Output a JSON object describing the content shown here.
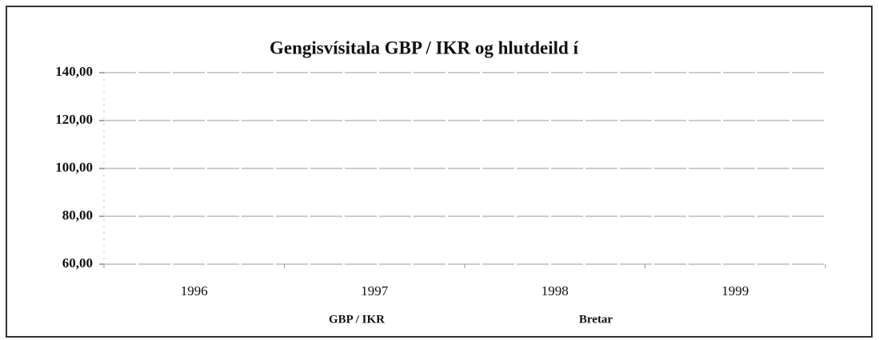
{
  "chart_data": {
    "type": "line",
    "title": "Gengisvísitala GBP / IKR og hlutdeild í",
    "categories": [
      "1996",
      "1997",
      "1998",
      "1999"
    ],
    "series": [
      {
        "name": "GBP / IKR",
        "color": "#222222",
        "values": [
          null,
          null,
          null,
          null
        ]
      },
      {
        "name": "Bretar",
        "color": "#555555",
        "values": [
          null,
          null,
          null,
          null
        ]
      }
    ],
    "ylim": [
      60,
      140
    ],
    "yticks": [
      {
        "value": 60,
        "label": "60,00"
      },
      {
        "value": 80,
        "label": "80,00"
      },
      {
        "value": 100,
        "label": "100,00"
      },
      {
        "value": 120,
        "label": "120,00"
      },
      {
        "value": 140,
        "label": "140,00"
      }
    ],
    "grid": true
  }
}
